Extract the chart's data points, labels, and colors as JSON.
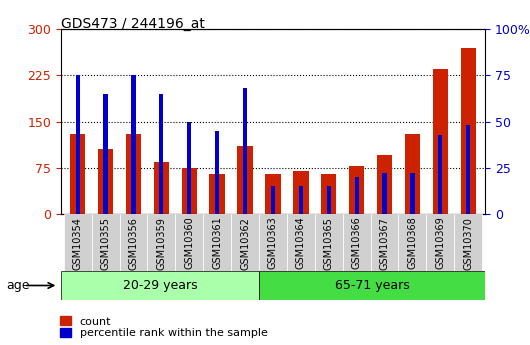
{
  "title": "GDS473 / 244196_at",
  "samples": [
    "GSM10354",
    "GSM10355",
    "GSM10356",
    "GSM10359",
    "GSM10360",
    "GSM10361",
    "GSM10362",
    "GSM10363",
    "GSM10364",
    "GSM10365",
    "GSM10366",
    "GSM10367",
    "GSM10368",
    "GSM10369",
    "GSM10370"
  ],
  "count_values": [
    130,
    105,
    130,
    85,
    75,
    65,
    110,
    65,
    70,
    65,
    78,
    95,
    130,
    235,
    270
  ],
  "percentile_values": [
    75,
    65,
    75,
    65,
    50,
    45,
    68,
    15,
    15,
    15,
    20,
    22,
    22,
    43,
    48
  ],
  "group1_label": "20-29 years",
  "group2_label": "65-71 years",
  "group1_count": 7,
  "group2_count": 8,
  "left_ylim": [
    0,
    300
  ],
  "right_ylim": [
    0,
    100
  ],
  "left_yticks": [
    0,
    75,
    150,
    225,
    300
  ],
  "right_yticks": [
    0,
    25,
    50,
    75,
    100
  ],
  "right_yticklabels": [
    "0",
    "25",
    "50",
    "75",
    "100%"
  ],
  "bar_color_count": "#cc2200",
  "bar_color_pct": "#0000cc",
  "group1_bg": "#aaffaa",
  "group2_bg": "#44dd44",
  "xtick_bg": "#d0d0d0",
  "age_label": "age",
  "legend_count": "count",
  "legend_pct": "percentile rank within the sample",
  "gridline_color": "#000000",
  "gridline_style": "dotted"
}
